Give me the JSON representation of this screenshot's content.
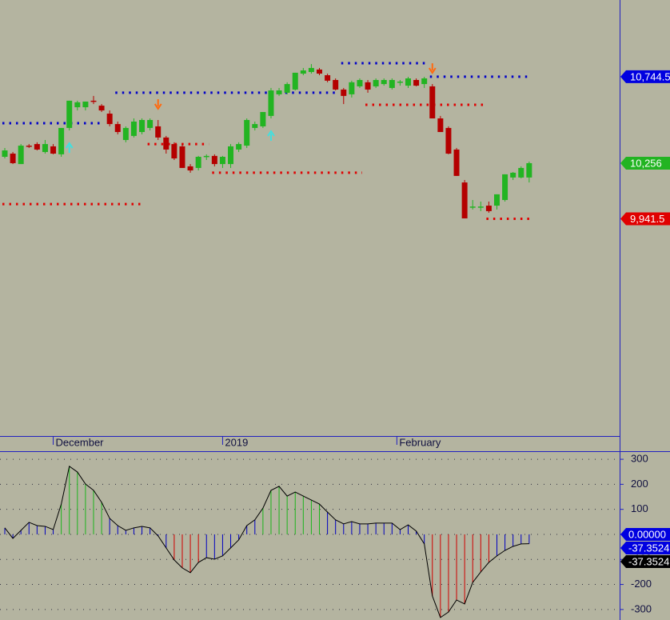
{
  "chart_data": [
    {
      "type": "candlestick",
      "ylim": [
        8737,
        11178
      ],
      "up_color": "#22b422",
      "down_color": "#b40000",
      "open": [
        10292,
        10310,
        10251,
        10355,
        10364,
        10319,
        10351,
        10306,
        10455,
        10572,
        10572,
        10609,
        10581,
        10536,
        10477,
        10387,
        10410,
        10432,
        10455,
        10464,
        10401,
        10364,
        10351,
        10238,
        10229,
        10292,
        10297,
        10251,
        10251,
        10333,
        10355,
        10455,
        10464,
        10523,
        10645,
        10654,
        10672,
        10762,
        10771,
        10785,
        10753,
        10726,
        10672,
        10645,
        10690,
        10713,
        10690,
        10703,
        10681,
        10713,
        10694,
        10726,
        10703,
        10690,
        10509,
        10455,
        10333,
        10147,
        10007,
        10007,
        10016,
        10016,
        10048,
        10175,
        10175,
        10175
      ],
      "high": [
        10342,
        10319,
        10364,
        10364,
        10374,
        10387,
        10364,
        10455,
        10609,
        10609,
        10604,
        10636,
        10590,
        10554,
        10491,
        10464,
        10509,
        10509,
        10509,
        10500,
        10410,
        10374,
        10364,
        10251,
        10297,
        10306,
        10306,
        10297,
        10364,
        10374,
        10509,
        10491,
        10545,
        10681,
        10681,
        10713,
        10767,
        10794,
        10816,
        10794,
        10762,
        10735,
        10681,
        10722,
        10735,
        10726,
        10735,
        10735,
        10735,
        10726,
        10744,
        10735,
        10744,
        10703,
        10523,
        10464,
        10342,
        10161,
        10048,
        10039,
        10039,
        10080,
        10193,
        10206,
        10238,
        10265
      ],
      "low": [
        10283,
        10251,
        10251,
        10342,
        10328,
        10310,
        10306,
        10292,
        10441,
        10554,
        10554,
        10590,
        10545,
        10464,
        10419,
        10374,
        10401,
        10419,
        10441,
        10387,
        10310,
        10274,
        10229,
        10202,
        10215,
        10274,
        10238,
        10229,
        10229,
        10319,
        10342,
        10441,
        10455,
        10509,
        10636,
        10645,
        10667,
        10753,
        10762,
        10753,
        10713,
        10667,
        10590,
        10627,
        10681,
        10654,
        10681,
        10694,
        10672,
        10694,
        10681,
        10690,
        10681,
        10509,
        10432,
        10306,
        10184,
        9944,
        9994,
        9985,
        9976,
        9994,
        10039,
        10161,
        10170,
        10147
      ],
      "close": [
        10328,
        10256,
        10355,
        10351,
        10333,
        10364,
        10310,
        10455,
        10609,
        10600,
        10604,
        10604,
        10554,
        10477,
        10432,
        10455,
        10491,
        10500,
        10500,
        10401,
        10333,
        10283,
        10229,
        10215,
        10292,
        10297,
        10251,
        10292,
        10351,
        10364,
        10500,
        10477,
        10545,
        10667,
        10667,
        10703,
        10767,
        10780,
        10794,
        10762,
        10722,
        10672,
        10636,
        10713,
        10726,
        10672,
        10726,
        10726,
        10726,
        10717,
        10735,
        10694,
        10735,
        10509,
        10432,
        10310,
        10184,
        9944,
        10011,
        10011,
        9985,
        10080,
        10193,
        10202,
        10229,
        10256
      ],
      "date_labels": [
        {
          "index": 6,
          "label": "December"
        },
        {
          "index": 27,
          "label": "2019"
        },
        {
          "index": 48.6,
          "label": "February"
        }
      ],
      "levels": [
        {
          "start": 0,
          "end": 12,
          "value": 10482,
          "color": "#0000c8"
        },
        {
          "start": 14,
          "end": 41,
          "value": 10654,
          "color": "#0000c8"
        },
        {
          "start": 42,
          "end": 52,
          "value": 10821,
          "color": "#0000c8"
        },
        {
          "start": 53,
          "end": 65,
          "value": 10744.5,
          "color": "#0000c8"
        },
        {
          "start": 0,
          "end": 17,
          "value": 10025,
          "color": "#e00000"
        },
        {
          "start": 18,
          "end": 25,
          "value": 10364,
          "color": "#e00000"
        },
        {
          "start": 26,
          "end": 44,
          "value": 10202,
          "color": "#e00000"
        },
        {
          "start": 45,
          "end": 59,
          "value": 10586,
          "color": "#e00000"
        },
        {
          "start": 60,
          "end": 65,
          "value": 9941.5,
          "color": "#e00000"
        }
      ],
      "signals": [
        {
          "index": 8,
          "direction": "up",
          "color": "#40e0e0"
        },
        {
          "index": 19,
          "direction": "down",
          "color": "#ff6a10"
        },
        {
          "index": 33,
          "direction": "up",
          "color": "#40e0e0"
        },
        {
          "index": 53,
          "direction": "down",
          "color": "#ff6a10"
        }
      ],
      "price_labels": [
        {
          "value": 10744.5,
          "label": "10,744.5",
          "color": "#0000e0"
        },
        {
          "value": 10256,
          "label": "10,256",
          "color": "#22b422"
        },
        {
          "value": 9941.5,
          "label": "9,941.5",
          "color": "#e00000"
        }
      ]
    },
    {
      "type": "histogram",
      "ylim": [
        -342,
        329
      ],
      "yticks": [
        300,
        200,
        100,
        0,
        -100,
        -200,
        -300
      ],
      "up_color": "#1db51d",
      "down_color": "#d00000",
      "neutral_color": "#0000c0",
      "line_color": "#000000",
      "thresholds": [
        -100,
        100
      ],
      "values": [
        26,
        -16,
        16,
        48,
        35,
        32,
        19,
        121,
        272,
        249,
        201,
        176,
        128,
        64,
        35,
        16,
        26,
        32,
        26,
        -6,
        -54,
        -102,
        -134,
        -153,
        -112,
        -93,
        -99,
        -86,
        -54,
        -22,
        35,
        58,
        105,
        176,
        192,
        153,
        169,
        153,
        137,
        121,
        89,
        58,
        42,
        51,
        42,
        42,
        45,
        45,
        45,
        19,
        38,
        13,
        -38,
        -246,
        -332,
        -310,
        -262,
        -278,
        -192,
        -150,
        -112,
        -86,
        -64,
        -48,
        -38,
        -37.3524
      ],
      "value_labels": [
        {
          "value": 0,
          "label": "0.00000",
          "color": "#0000e0"
        },
        {
          "value": -37.3524,
          "label": "-37.3524",
          "color": "#0000e0"
        },
        {
          "value": -37.3524,
          "label": "-37.3524",
          "color": "#000000"
        }
      ]
    }
  ]
}
